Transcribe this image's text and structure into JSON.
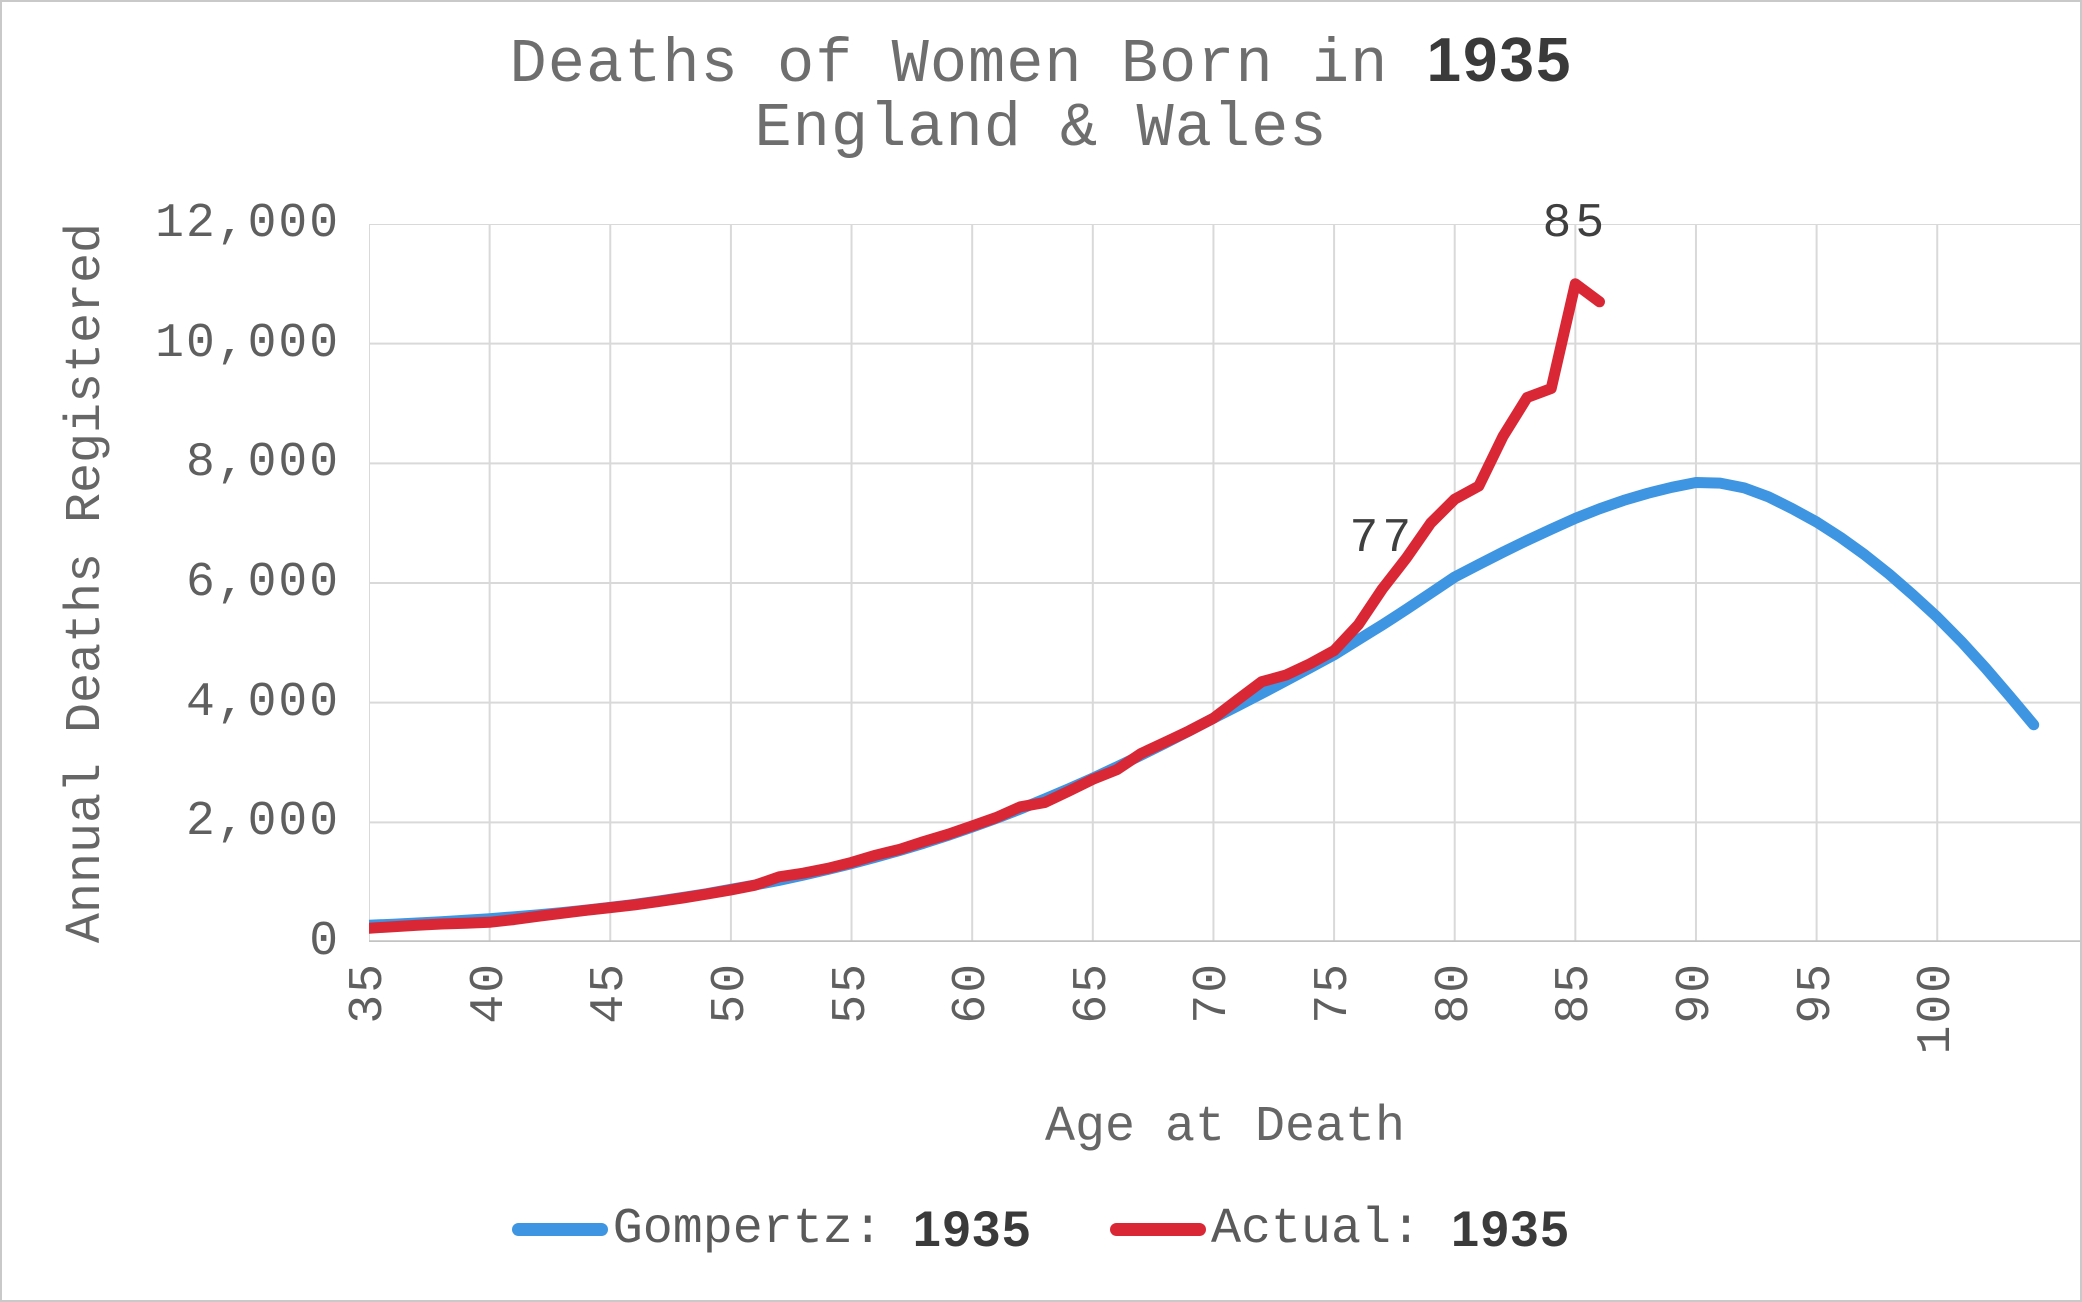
{
  "title": {
    "line1_prefix": "Deaths of Women Born in ",
    "line1_year": "1935",
    "line2": "England & Wales"
  },
  "axes": {
    "y_title": "Annual Deaths Registered",
    "x_title": "Age at Death"
  },
  "legend": {
    "items": [
      {
        "label": "Gompertz: ",
        "year": "1935"
      },
      {
        "label": "Actual: ",
        "year": "1935"
      }
    ]
  },
  "colors": {
    "background": "#ffffff",
    "window_border": "#c9c9c9",
    "gridline": "#d9d9d9",
    "axis_line": "#c3c3c3",
    "gompertz_blue": "#3e95e1",
    "actual_red": "#da2735",
    "text_gray": "#5f5f5f",
    "title_gray": "#6e6e6e",
    "year_dark": "#3a3a3a",
    "annotation_gray": "#3f3f3f"
  },
  "chart_data": {
    "type": "line",
    "title": "Deaths of Women Born in 1935 — England & Wales",
    "xlabel": "Age at Death",
    "ylabel": "Annual Deaths Registered",
    "xlim": [
      35,
      106
    ],
    "ylim": [
      0,
      12000
    ],
    "x_ticks": [
      35,
      40,
      45,
      50,
      55,
      60,
      65,
      70,
      75,
      80,
      85,
      90,
      95,
      100
    ],
    "y_ticks": [
      0,
      2000,
      4000,
      6000,
      8000,
      10000,
      12000
    ],
    "grid": true,
    "legend_position": "bottom",
    "series": [
      {
        "name": "Gompertz: 1935",
        "color": "#3e95e1",
        "x": [
          35,
          36,
          37,
          38,
          39,
          40,
          41,
          42,
          43,
          44,
          45,
          46,
          47,
          48,
          49,
          50,
          51,
          52,
          53,
          54,
          55,
          56,
          57,
          58,
          59,
          60,
          61,
          62,
          63,
          64,
          65,
          66,
          67,
          68,
          69,
          70,
          71,
          72,
          73,
          74,
          75,
          76,
          77,
          78,
          79,
          80,
          81,
          82,
          83,
          84,
          85,
          86,
          87,
          88,
          89,
          90,
          91,
          92,
          93,
          94,
          95,
          96,
          97,
          98,
          99,
          100,
          101,
          102,
          103,
          104
        ],
        "values": [
          280,
          298,
          318,
          340,
          364,
          390,
          421,
          455,
          492,
          533,
          580,
          629,
          683,
          743,
          808,
          880,
          953,
          1032,
          1118,
          1211,
          1310,
          1417,
          1531,
          1652,
          1782,
          1920,
          2067,
          2223,
          2388,
          2560,
          2740,
          2928,
          3122,
          3322,
          3528,
          3740,
          3945,
          4154,
          4366,
          4581,
          4800,
          5050,
          5300,
          5560,
          5830,
          6100,
          6310,
          6515,
          6712,
          6900,
          7080,
          7240,
          7380,
          7500,
          7600,
          7680,
          7670,
          7590,
          7440,
          7240,
          7020,
          6760,
          6470,
          6150,
          5800,
          5430,
          5020,
          4580,
          4110,
          3630
        ]
      },
      {
        "name": "Actual: 1935",
        "color": "#da2735",
        "x": [
          35,
          36,
          37,
          38,
          39,
          40,
          41,
          42,
          43,
          44,
          45,
          46,
          47,
          48,
          49,
          50,
          51,
          52,
          53,
          54,
          55,
          56,
          57,
          58,
          59,
          60,
          61,
          62,
          63,
          64,
          65,
          66,
          67,
          68,
          69,
          70,
          71,
          72,
          73,
          74,
          75,
          76,
          77,
          78,
          79,
          80,
          81,
          82,
          83,
          84,
          85,
          86
        ],
        "values": [
          230,
          255,
          280,
          300,
          315,
          330,
          375,
          430,
          480,
          530,
          575,
          620,
          675,
          735,
          800,
          870,
          950,
          1090,
          1150,
          1230,
          1330,
          1450,
          1550,
          1680,
          1800,
          1940,
          2080,
          2260,
          2330,
          2520,
          2720,
          2880,
          3150,
          3340,
          3530,
          3740,
          4050,
          4350,
          4460,
          4650,
          4870,
          5300,
          5900,
          6420,
          7000,
          7400,
          7620,
          8450,
          9100,
          9250,
          11000,
          10700
        ]
      }
    ],
    "annotations": [
      {
        "text": "77",
        "series_index": 1,
        "age": 77,
        "dy": -50
      },
      {
        "text": "85",
        "series_index": 1,
        "age": 85,
        "dy": -60
      }
    ]
  }
}
